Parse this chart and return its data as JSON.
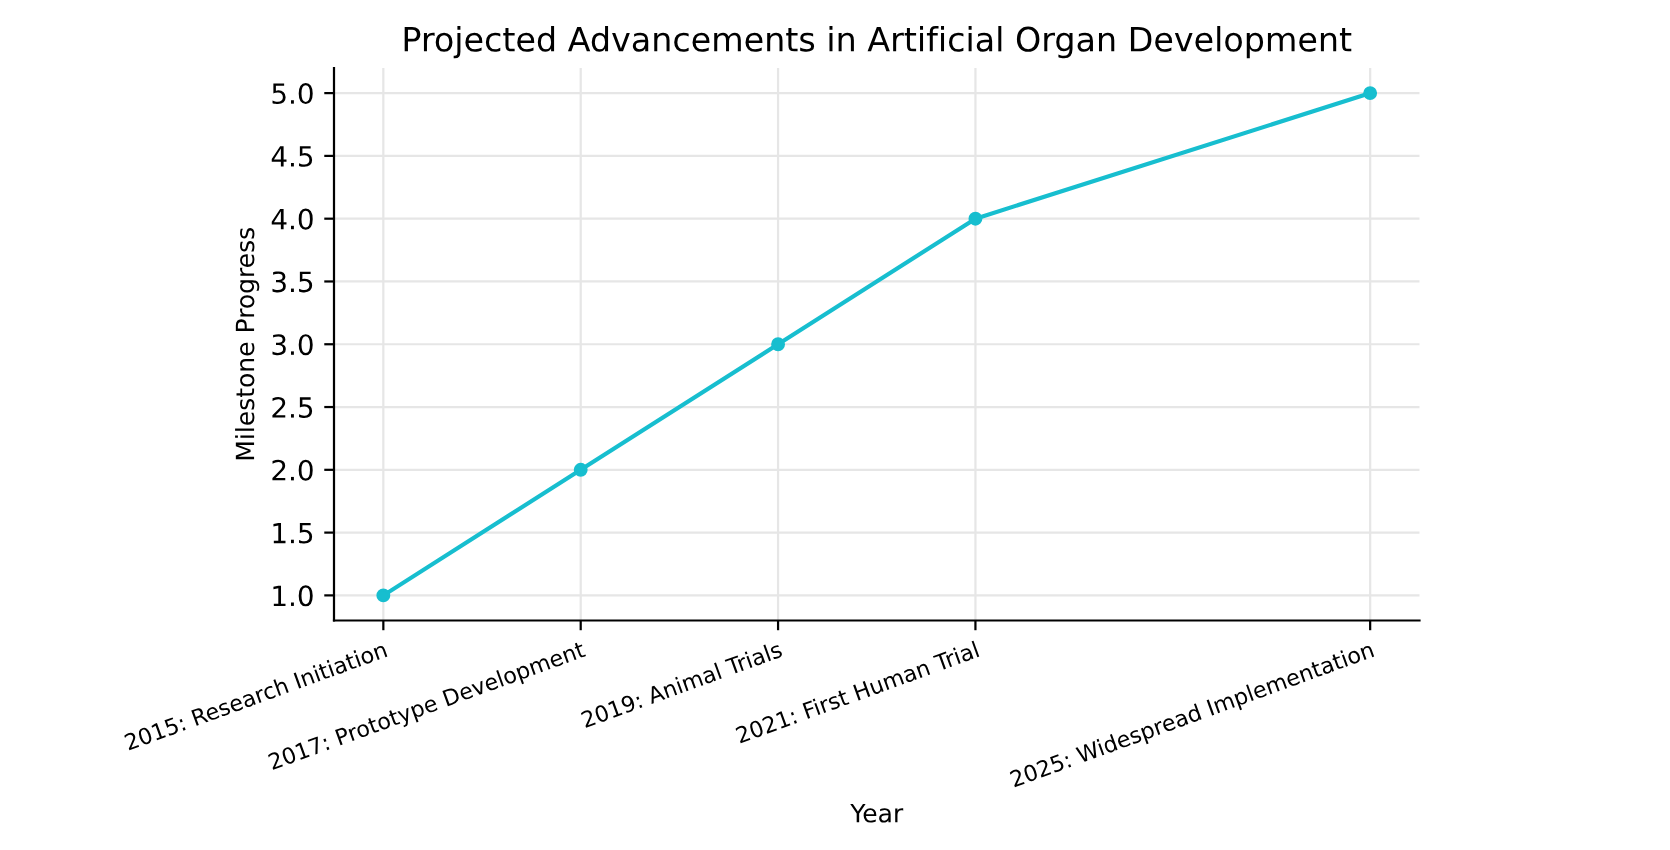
{
  "chart_data": {
    "type": "line",
    "title": "Projected Advancements in Artificial Organ Development",
    "xlabel": "Year",
    "ylabel": "Milestone Progress",
    "x": [
      2015,
      2017,
      2019,
      2021,
      2025
    ],
    "series": [
      {
        "color": "#17becf",
        "values": [
          1,
          2,
          3,
          4,
          5
        ]
      }
    ],
    "xlim": [
      2014.5,
      2025.5
    ],
    "xticks": [
      {
        "value": 2015,
        "label": "2015: Research Initiation"
      },
      {
        "value": 2017,
        "label": "2017: Prototype Development"
      },
      {
        "value": 2019,
        "label": "2019: Animal Trials"
      },
      {
        "value": 2021,
        "label": "2021: First Human Trial"
      },
      {
        "value": 2025,
        "label": "2025: Widespread Implementation"
      }
    ],
    "ylim": [
      0.8,
      5.2
    ],
    "yticks": [
      {
        "value": 1,
        "label": "1.0"
      },
      1.5,
      {
        "value": 2,
        "label": "2.0"
      },
      2.5,
      {
        "value": 3,
        "label": "3.0"
      },
      3.5,
      {
        "value": 4,
        "label": "4.0"
      },
      4.5,
      {
        "value": 5,
        "label": "5.0"
      }
    ],
    "grid": true,
    "marker": "circle",
    "line_style": "solid"
  }
}
